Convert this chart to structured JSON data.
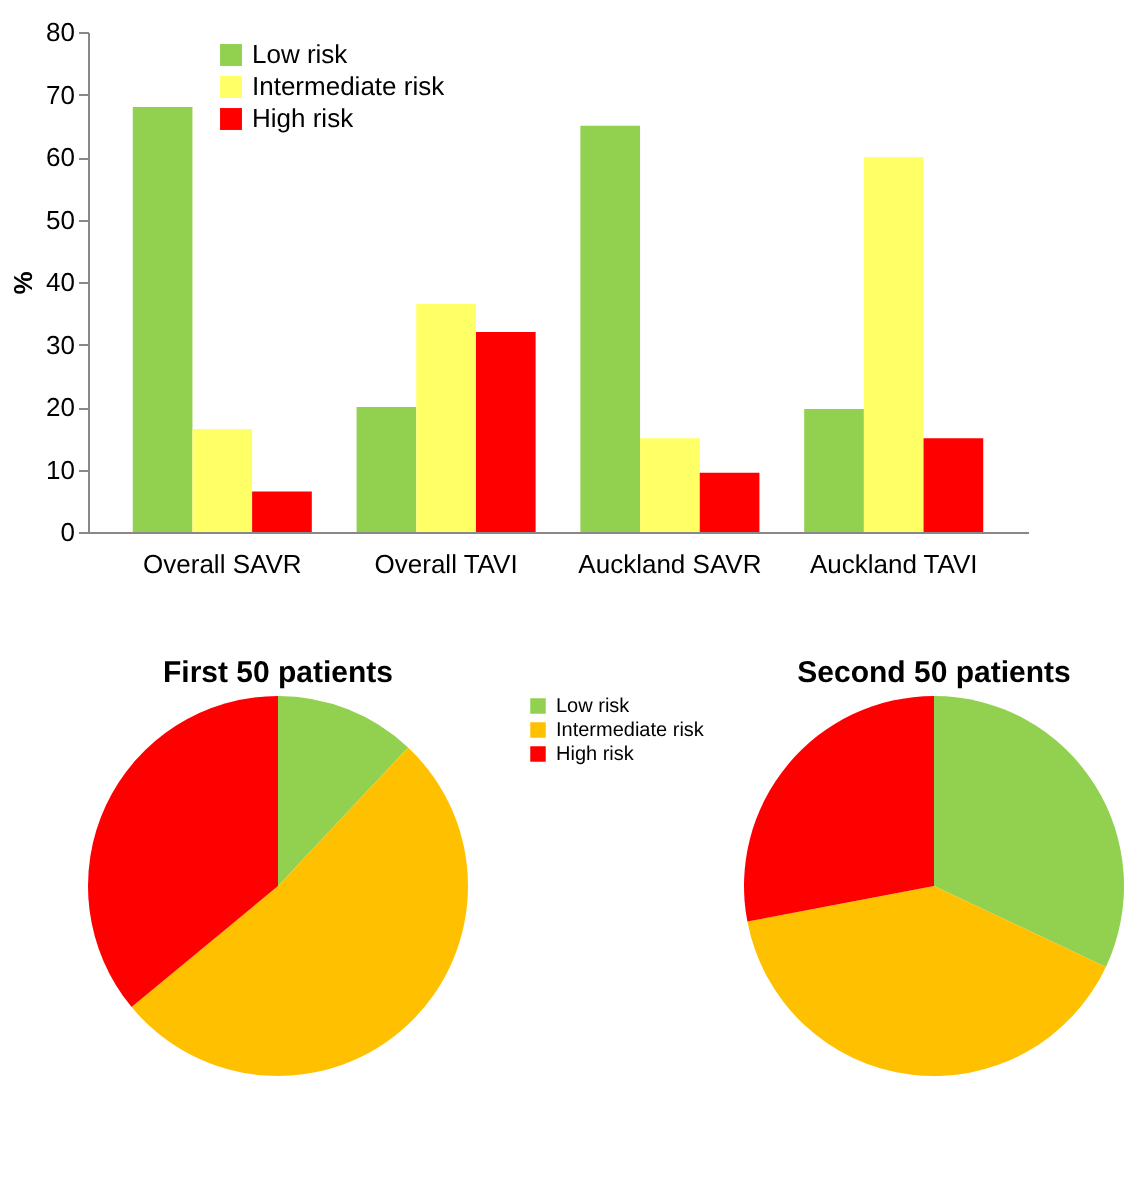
{
  "chart_data": [
    {
      "type": "bar",
      "ylabel": "%",
      "categories": [
        "Overall SAVR",
        "Overall TAVI",
        "Auckland SAVR",
        "Auckland TAVI"
      ],
      "series": [
        {
          "name": "Low risk",
          "color": "#92d050",
          "values": [
            68,
            20,
            65,
            19.7
          ]
        },
        {
          "name": "Intermediate risk",
          "color": "#ffff66",
          "values": [
            16.5,
            36.5,
            15,
            60
          ]
        },
        {
          "name": "High risk",
          "color": "#ff0000",
          "values": [
            6.5,
            32,
            9.5,
            15
          ]
        }
      ],
      "ylim": [
        0,
        80
      ],
      "yticks": [
        0,
        10,
        20,
        30,
        40,
        50,
        60,
        70,
        80
      ],
      "grid": false,
      "legend": "top left"
    },
    {
      "type": "pie",
      "title": "First 50 patients",
      "categories": [
        "Low risk",
        "Intermediate risk",
        "High risk"
      ],
      "values": [
        12,
        52,
        36
      ],
      "colors": [
        "#92d050",
        "#ffc000",
        "#ff0000"
      ],
      "legend": "right"
    },
    {
      "type": "pie",
      "title": "Second 50 patients",
      "categories": [
        null,
        null,
        null
      ],
      "values": [
        32,
        40,
        28
      ],
      "colors": [
        "#92d050",
        "#ffc000",
        "#ff0000"
      ]
    }
  ]
}
